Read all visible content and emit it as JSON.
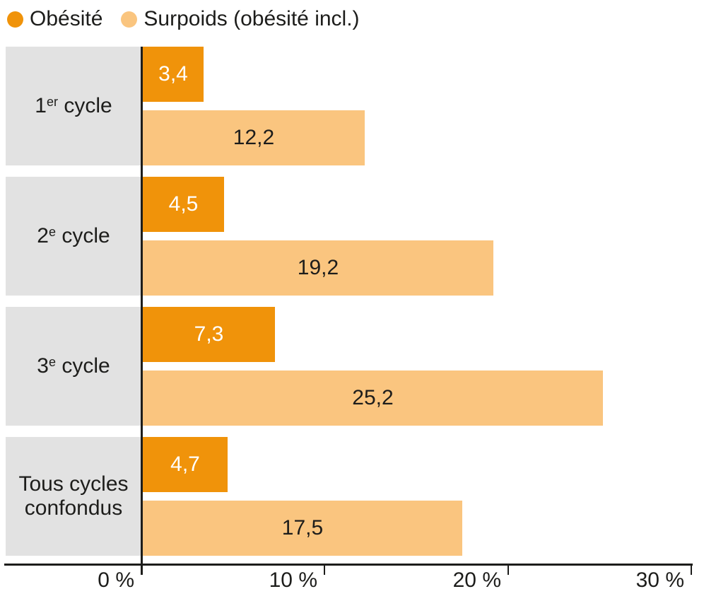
{
  "colors": {
    "obesity": "#F0930A",
    "overweight": "#FAC57F",
    "category_bg": "#E2E2E2",
    "ink": "#1D1D1B",
    "label_on_dark_bar": "#FFFFFF"
  },
  "legend": {
    "items": [
      {
        "label": "Obésité",
        "series": "obesity"
      },
      {
        "label": "Surpoids (obésité incl.)",
        "series": "overweight"
      }
    ]
  },
  "chart_data": {
    "type": "bar",
    "orientation": "horizontal",
    "title": "",
    "xlabel": "",
    "ylabel": "",
    "grid": false,
    "legend_position": "top-left",
    "xlim": [
      0,
      30.3
    ],
    "categories": [
      "1er cycle",
      "2e cycle",
      "3e cycle",
      "Tous cycles confondus"
    ],
    "category_labels": [
      {
        "main": "1",
        "sup": "er",
        "tail": " cycle",
        "line2": ""
      },
      {
        "main": "2",
        "sup": "e",
        "tail": " cycle",
        "line2": ""
      },
      {
        "main": "3",
        "sup": "e",
        "tail": " cycle",
        "line2": ""
      },
      {
        "main": "Tous cycles",
        "sup": "",
        "tail": "",
        "line2": "confondus"
      }
    ],
    "series": [
      {
        "name": "Obésité",
        "color": "#F0930A",
        "values": [
          3.4,
          4.5,
          7.3,
          4.7
        ],
        "value_labels": [
          "3,4",
          "4,5",
          "7,3",
          "4,7"
        ]
      },
      {
        "name": "Surpoids (obésité incl.)",
        "color": "#FAC57F",
        "values": [
          12.2,
          19.2,
          25.2,
          17.5
        ],
        "value_labels": [
          "12,2",
          "19,2",
          "25,2",
          "17,5"
        ]
      }
    ],
    "x_ticks": [
      {
        "label": "0 %",
        "value": 0
      },
      {
        "label": "10 %",
        "value": 10
      },
      {
        "label": "20 %",
        "value": 20
      },
      {
        "label": "30 %",
        "value": 30
      }
    ]
  }
}
